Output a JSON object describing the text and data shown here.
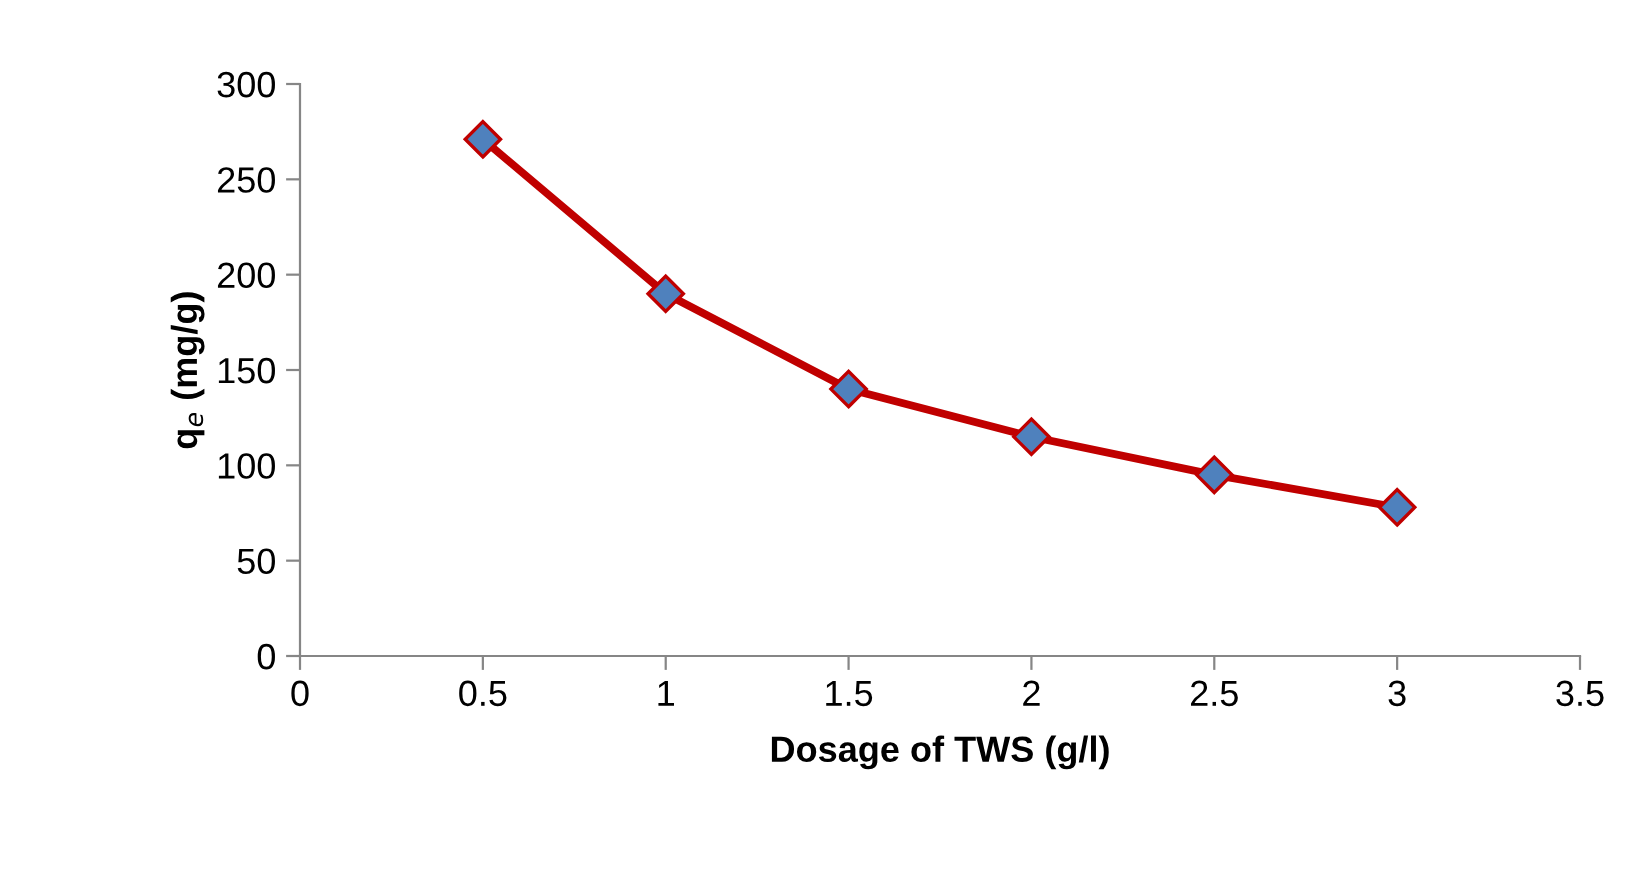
{
  "chart_data": {
    "type": "line",
    "xlabel": "Dosage of TWS (g/l)",
    "ylabel": "q$_{e}$ (mg/g)",
    "x": [
      0.5,
      1,
      1.5,
      2,
      2.5,
      3
    ],
    "series": [
      {
        "color": "#c00000",
        "values": [
          271,
          190,
          140,
          115,
          95,
          78
        ]
      }
    ],
    "marker": "diamond",
    "line_style": "solid",
    "xlim": [
      0,
      3.5
    ],
    "xticks": [
      0,
      0.5,
      1,
      1.5,
      2,
      2.5,
      3,
      3.5
    ],
    "ylim": [
      0,
      300
    ],
    "yticks": [
      0,
      50,
      100,
      150,
      200,
      250,
      300
    ],
    "grid": false,
    "legend": false
  }
}
